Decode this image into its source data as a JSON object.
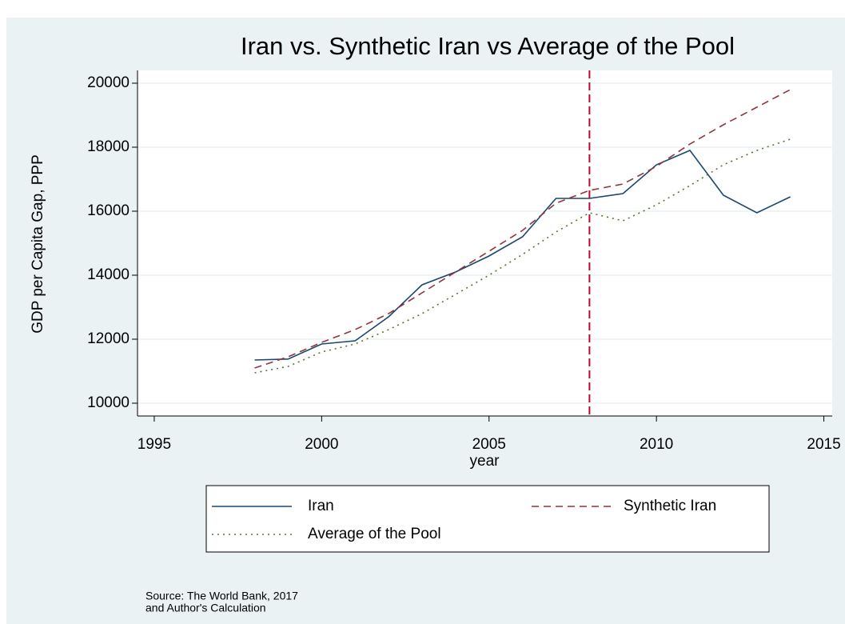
{
  "chart_data": {
    "type": "line",
    "title": "Iran vs. Synthetic Iran vs Average of the Pool",
    "x_label": "year",
    "y_label": "GDP per Capita Gap, PPP",
    "x": [
      1998,
      1999,
      2000,
      2001,
      2002,
      2003,
      2004,
      2005,
      2006,
      2007,
      2008,
      2009,
      2010,
      2011,
      2012,
      2013,
      2014
    ],
    "series": [
      {
        "name": "Iran",
        "color": "#1a476f",
        "dash": "solid",
        "values": [
          11350,
          11380,
          11850,
          11950,
          12700,
          13700,
          14100,
          14600,
          15200,
          16400,
          16400,
          16550,
          17450,
          17900,
          16500,
          15950,
          16450
        ]
      },
      {
        "name": "Synthetic Iran",
        "color": "#90353b",
        "dash": "dashed",
        "values": [
          11100,
          11450,
          11900,
          12300,
          12800,
          13450,
          14100,
          14750,
          15400,
          16250,
          16650,
          16850,
          17400,
          18100,
          18700,
          19250,
          19800
        ]
      },
      {
        "name": "Average of the Pool",
        "color": "#55752f",
        "dash": "dotted",
        "values": [
          10950,
          11150,
          11600,
          11850,
          12300,
          12800,
          13400,
          14000,
          14650,
          15350,
          15950,
          15700,
          16200,
          16800,
          17450,
          17900,
          18250
        ]
      }
    ],
    "vline": {
      "value": 2008,
      "color": "#c10534"
    },
    "xlim": [
      1994.5,
      2015.25
    ],
    "xticks": [
      1995,
      2000,
      2005,
      2010,
      2015
    ],
    "ylim": [
      9600,
      20400
    ],
    "yticks": [
      10000,
      12000,
      14000,
      16000,
      18000,
      20000
    ],
    "grid": true,
    "legend": "bottom",
    "note": [
      "Source: The World Bank, 2017",
      "and Author's Calculation"
    ]
  }
}
